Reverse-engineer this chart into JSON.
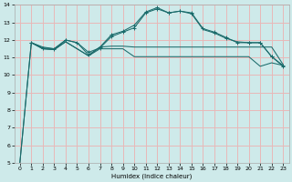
{
  "xlabel": "Humidex (Indice chaleur)",
  "bg_color": "#ceeaea",
  "grid_color": "#e8b8b8",
  "line_color": "#1a6b6b",
  "xlim": [
    -0.5,
    23.5
  ],
  "ylim": [
    5,
    14
  ],
  "xticks": [
    0,
    1,
    2,
    3,
    4,
    5,
    6,
    7,
    8,
    9,
    10,
    11,
    12,
    13,
    14,
    15,
    16,
    17,
    18,
    19,
    20,
    21,
    22,
    23
  ],
  "yticks": [
    5,
    6,
    7,
    8,
    9,
    10,
    11,
    12,
    13,
    14
  ],
  "curve1_x": [
    0,
    1,
    2,
    3,
    4,
    5,
    6,
    7,
    8,
    9,
    10,
    11,
    12,
    13,
    14,
    15,
    16,
    17,
    18,
    19,
    20,
    21,
    22,
    23
  ],
  "curve1_y": [
    5.0,
    11.85,
    11.5,
    11.45,
    11.9,
    11.5,
    11.1,
    11.5,
    11.5,
    11.5,
    11.05,
    11.05,
    11.05,
    11.05,
    11.05,
    11.05,
    11.05,
    11.05,
    11.05,
    11.05,
    11.05,
    10.5,
    10.7,
    10.55
  ],
  "curve2_x": [
    0,
    1,
    2,
    3,
    4,
    5,
    6,
    7,
    8,
    9,
    10,
    11,
    12,
    13,
    14,
    15,
    16,
    17,
    18,
    19,
    20,
    21,
    22,
    23
  ],
  "curve2_y": [
    5.0,
    11.85,
    11.5,
    11.45,
    11.9,
    11.5,
    11.1,
    11.6,
    11.65,
    11.65,
    11.6,
    11.6,
    11.6,
    11.6,
    11.6,
    11.6,
    11.6,
    11.6,
    11.6,
    11.6,
    11.6,
    11.6,
    11.6,
    10.6
  ],
  "curve3_x": [
    1,
    2,
    3,
    4,
    5,
    6,
    7,
    8,
    9,
    10,
    11,
    12,
    13,
    14,
    15,
    16,
    17,
    18,
    19,
    20,
    21,
    22,
    23
  ],
  "curve3_y": [
    11.85,
    11.55,
    11.5,
    12.0,
    11.85,
    11.15,
    11.6,
    12.3,
    12.5,
    12.85,
    13.6,
    13.85,
    13.55,
    13.65,
    13.55,
    12.65,
    12.45,
    12.15,
    11.85,
    11.85,
    11.85,
    11.05,
    10.55
  ],
  "curve4_x": [
    1,
    2,
    3,
    4,
    5,
    6,
    7,
    8,
    9,
    10,
    11,
    12,
    13,
    14,
    15,
    16,
    17,
    18,
    19,
    20,
    21,
    22,
    23
  ],
  "curve4_y": [
    11.85,
    11.6,
    11.5,
    12.0,
    11.85,
    11.3,
    11.55,
    12.2,
    12.45,
    12.7,
    13.55,
    13.78,
    13.55,
    13.65,
    13.5,
    12.6,
    12.4,
    12.1,
    11.9,
    11.85,
    11.85,
    11.05,
    10.5
  ],
  "curve4_markers_x": [
    1,
    4,
    6,
    7,
    8,
    9,
    10,
    11,
    12,
    13,
    14,
    15,
    17,
    18,
    20,
    21,
    22,
    23
  ],
  "curve4_markers_y": [
    11.85,
    12.0,
    11.3,
    11.55,
    12.2,
    12.45,
    12.7,
    13.55,
    13.78,
    13.55,
    13.65,
    13.5,
    12.4,
    12.1,
    11.85,
    11.85,
    11.05,
    10.5
  ]
}
